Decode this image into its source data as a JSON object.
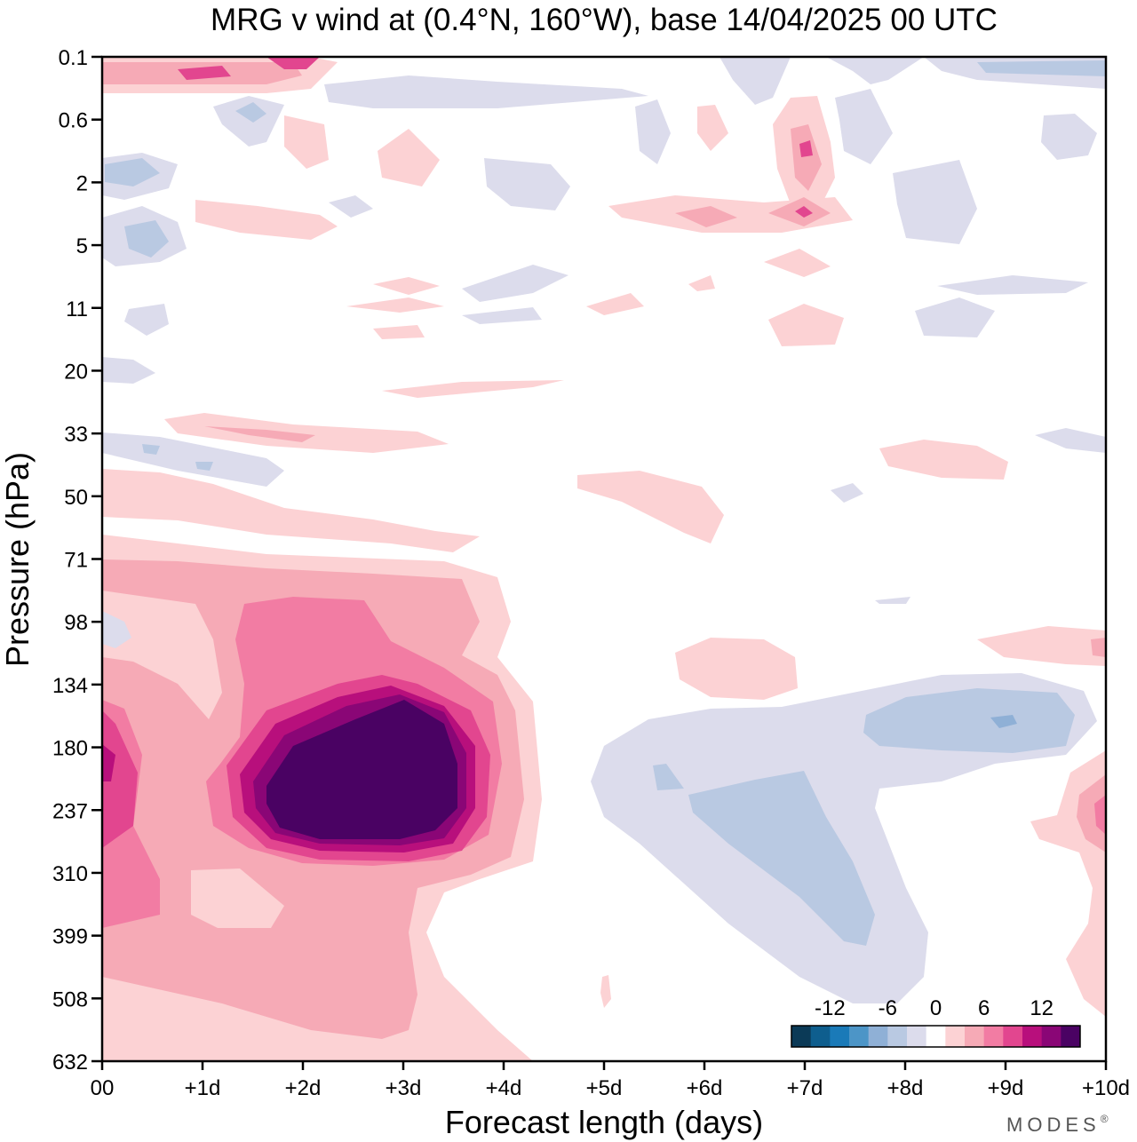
{
  "chart_data": {
    "type": "heatmap",
    "title": "MRG v wind at (0.4°N, 160°W),  base 14/04/2025  00 UTC",
    "xlabel": "Forecast length (days)",
    "ylabel": "Pressure (hPa)",
    "x_ticks": [
      "00",
      "+1d",
      "+2d",
      "+3d",
      "+4d",
      "+5d",
      "+6d",
      "+7d",
      "+8d",
      "+9d",
      "+10d"
    ],
    "xlim_days": [
      0,
      10
    ],
    "y_ticks": [
      "0.1",
      "0.6",
      "2",
      "5",
      "11",
      "20",
      "33",
      "50",
      "71",
      "98",
      "134",
      "180",
      "237",
      "310",
      "399",
      "508",
      "632"
    ],
    "y_scale": "categorical pressure levels, top = 0.1 hPa, bottom = 632 hPa",
    "colorbar": {
      "tick_labels": [
        "-12",
        "-6",
        "0",
        "6",
        "12"
      ],
      "levels": [
        -14,
        -12,
        -10,
        -8,
        -6,
        -4,
        -2,
        2,
        4,
        6,
        8,
        10,
        12,
        14
      ],
      "colors": [
        "#0b3a57",
        "#0e5e8e",
        "#1a7ab8",
        "#4c95c7",
        "#8fb0d6",
        "#b9c9e2",
        "#dcdcec",
        "#ffffff",
        "#fcd2d4",
        "#f6aab6",
        "#f27ca3",
        "#e2468f",
        "#b80f7c",
        "#8a0676",
        "#4a0263"
      ]
    },
    "features": [
      {
        "name": "strong-southerly-max",
        "day": 3.0,
        "pressure_hPa": 210,
        "value": 14
      },
      {
        "name": "positive-column",
        "days": [
          0,
          4.3
        ],
        "pressure_hPa": [
          71,
          632
        ],
        "value": 6
      },
      {
        "name": "negative-region",
        "days": [
          5,
          10
        ],
        "pressure_hPa": [
          134,
          508
        ],
        "value": -6
      },
      {
        "name": "weak-negative-minimum",
        "day": 9.1,
        "pressure_hPa": 160,
        "value": -8
      }
    ]
  },
  "brand": "MODES",
  "brand_mark": "®"
}
